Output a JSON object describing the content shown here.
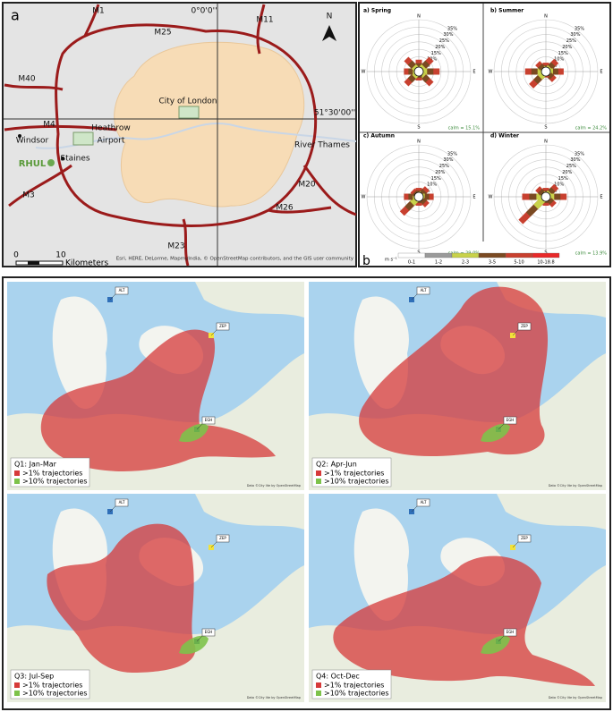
{
  "panel_a": {
    "label": "a",
    "labels": [
      "M1",
      "0°0'0''",
      "M11",
      "M25",
      "N",
      "M40",
      "City of London",
      "51°30'00''",
      "M4",
      "Heathrow",
      "Airport",
      "Windsor",
      "RHUL",
      "Staines",
      "River Thames",
      "M3",
      "M20",
      "M26",
      "M23"
    ],
    "scale_ticks": [
      0,
      10
    ],
    "scale_unit": "Kilometers",
    "attribution": "Esri, HERE, DeLorme, MapmyIndia, © OpenStreetMap contributors, and the GIS user community"
  },
  "panel_b": {
    "label": "b",
    "rings": [
      {
        "value": 5,
        "label": "5%"
      },
      {
        "value": 10,
        "label": "10%"
      },
      {
        "value": 15,
        "label": "15%"
      },
      {
        "value": 20,
        "label": "20%"
      },
      {
        "value": 25,
        "label": "25%"
      },
      {
        "value": 30,
        "label": "30%"
      },
      {
        "value": 35,
        "label": "35%"
      }
    ],
    "rlim": [
      0,
      35
    ],
    "directions": [
      "N",
      "E",
      "S",
      "W"
    ],
    "roses": [
      {
        "title": "a) Spring",
        "calm": "calm = 15.1%",
        "values": [
          8,
          12,
          14,
          12,
          6,
          12,
          10,
          12
        ]
      },
      {
        "title": "b) Summer",
        "calm": "calm = 24.2%",
        "values": [
          6,
          10,
          12,
          8,
          4,
          14,
          14,
          8
        ]
      },
      {
        "title": "c) Autumn",
        "calm": "calm = 29.0%",
        "values": [
          6,
          8,
          10,
          8,
          6,
          16,
          10,
          6
        ]
      },
      {
        "title": "d) Winter",
        "calm": "calm = 13.9%",
        "values": [
          6,
          10,
          14,
          8,
          6,
          24,
          16,
          8
        ]
      }
    ],
    "legend": {
      "unit": "m s⁻¹",
      "classes": [
        "0-1",
        "1-2",
        "2-3",
        "3-5",
        "5-10",
        "10-18.8"
      ],
      "colors": [
        "#ffffff",
        "#9a9a9a",
        "#c8d24a",
        "#7a4a22",
        "#c8402f",
        "#e8292a"
      ]
    }
  },
  "panel_c": {
    "label": "c",
    "maps": [
      {
        "title": "Q1: Jan-Mar"
      },
      {
        "title": "Q2: Apr-Jun"
      },
      {
        "title": "Q3: Jul-Sep"
      },
      {
        "title": "Q4: Oct-Dec"
      }
    ],
    "legend": [
      ">1% trajectories",
      ">10% trajectories"
    ],
    "legend_colors": [
      "#d63a3a",
      "#7dc24a"
    ],
    "stations": [
      "ALT",
      "ZEP",
      "EGH"
    ],
    "attribution": "Data ©City lite by OpenStreetMap"
  }
}
